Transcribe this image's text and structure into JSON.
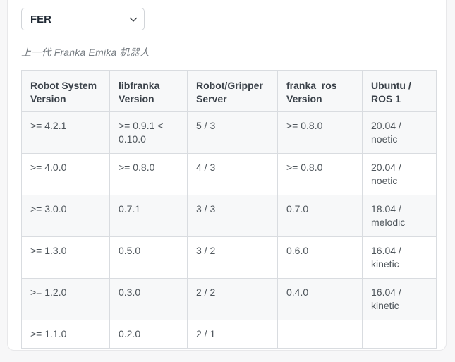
{
  "selector": {
    "value": "FER",
    "options": [
      "FER"
    ]
  },
  "subtitle": "上一代 Franka Emika 机器人",
  "table": {
    "headers": [
      "Robot System Version",
      "libfranka Version",
      "Robot/Gripper Server",
      "franka_ros Version",
      "Ubuntu / ROS 1"
    ],
    "rows": [
      [
        ">= 4.2.1",
        ">= 0.9.1 < 0.10.0",
        "5 / 3",
        ">= 0.8.0",
        "20.04 / noetic"
      ],
      [
        ">= 4.0.0",
        ">= 0.8.0",
        "4 / 3",
        ">= 0.8.0",
        "20.04 / noetic"
      ],
      [
        ">= 3.0.0",
        "0.7.1",
        "3 / 3",
        "0.7.0",
        "18.04 / melodic"
      ],
      [
        ">= 1.3.0",
        "0.5.0",
        "3 / 2",
        "0.6.0",
        "16.04 / kinetic"
      ],
      [
        ">= 1.2.0",
        "0.3.0",
        "2 / 2",
        "0.4.0",
        "16.04 / kinetic"
      ],
      [
        ">= 1.1.0",
        "0.2.0",
        "2 / 1",
        "",
        ""
      ]
    ]
  },
  "colors": {
    "stripe": "#f7f8f9",
    "table_border": "#d9dce0",
    "card_background": "#ffffff",
    "page_background": "#f7f7f8"
  }
}
